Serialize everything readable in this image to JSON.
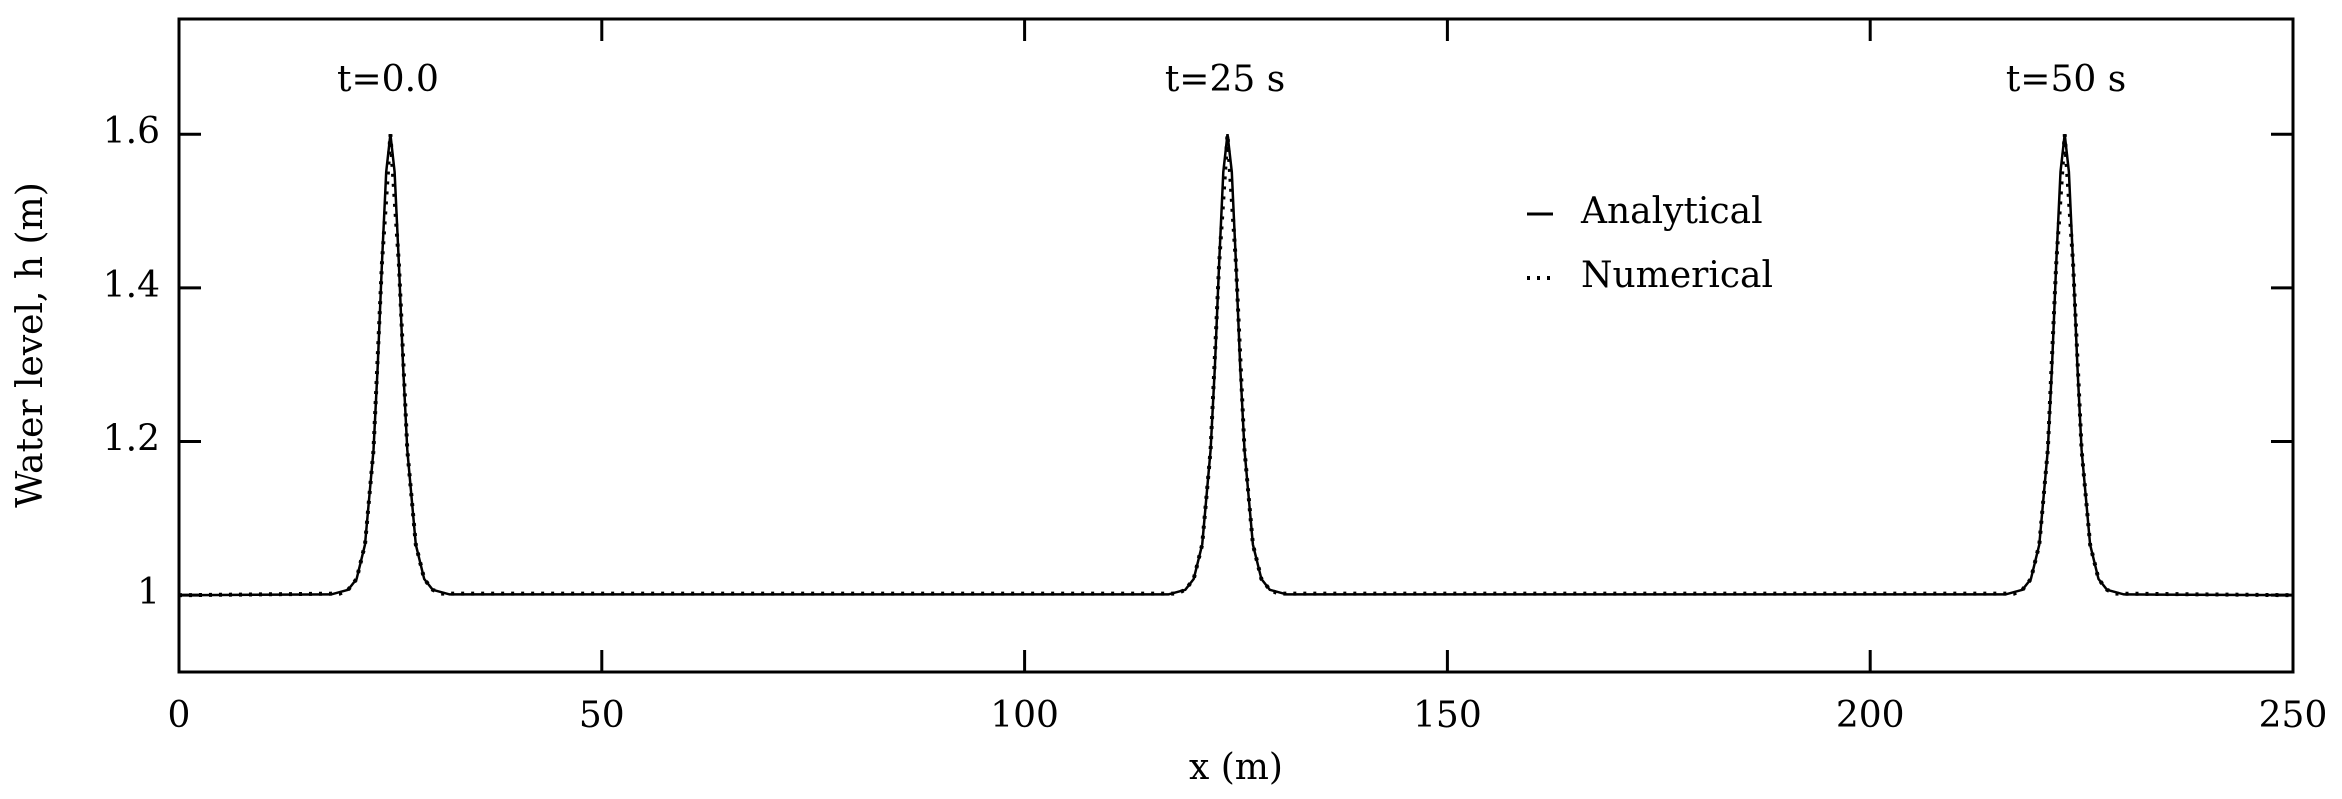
{
  "chart_data": {
    "type": "line",
    "xlabel": "x (m)",
    "ylabel": "Water level, h (m)",
    "annotations": [
      "t=0.0",
      "t=25 s",
      "t=50 s"
    ],
    "xlim": [
      0,
      250
    ],
    "xticks": [
      0,
      50,
      100,
      150,
      200,
      250
    ],
    "ylim": [
      0.9,
      1.75
    ],
    "yticks": [
      1,
      1.2,
      1.4,
      1.6
    ],
    "legend": "upper right",
    "series": [
      {
        "name": "Analytical",
        "color": "#000000",
        "style": "solid",
        "x": [
          0,
          18,
          20,
          21,
          22,
          23,
          23.5,
          24,
          24.5,
          25,
          25.5,
          26,
          26.5,
          27,
          28,
          29,
          30,
          32,
          117,
          119,
          120,
          121,
          122,
          122.5,
          123,
          123.5,
          124,
          124.5,
          125,
          125.5,
          126,
          127,
          128,
          129,
          131,
          216,
          218,
          219,
          220,
          221,
          221.5,
          222,
          222.5,
          223,
          223.5,
          224,
          224.5,
          225,
          226,
          227,
          228,
          230,
          250
        ],
        "values": [
          1,
          1.001,
          1.007,
          1.021,
          1.066,
          1.189,
          1.298,
          1.431,
          1.551,
          1.6,
          1.551,
          1.431,
          1.298,
          1.189,
          1.066,
          1.021,
          1.007,
          1.001,
          1.001,
          1.007,
          1.021,
          1.066,
          1.189,
          1.298,
          1.431,
          1.551,
          1.6,
          1.551,
          1.431,
          1.298,
          1.189,
          1.066,
          1.021,
          1.007,
          1.001,
          1.001,
          1.007,
          1.021,
          1.066,
          1.189,
          1.298,
          1.431,
          1.551,
          1.6,
          1.551,
          1.431,
          1.298,
          1.189,
          1.066,
          1.021,
          1.007,
          1.001,
          1
        ]
      },
      {
        "name": "Numerical",
        "color": "#000000",
        "style": "dotted",
        "x": [
          0,
          19,
          20,
          21,
          22,
          23,
          24,
          25,
          26,
          27,
          28,
          29,
          30,
          31,
          118,
          119,
          120,
          121,
          122,
          123,
          124,
          125,
          126,
          127,
          128,
          129,
          130,
          217,
          218,
          219,
          220,
          221,
          222,
          223,
          224,
          225,
          226,
          227,
          228,
          229,
          250
        ],
        "values": [
          1,
          1.002,
          1.007,
          1.021,
          1.066,
          1.189,
          1.431,
          1.6,
          1.431,
          1.189,
          1.066,
          1.021,
          1.007,
          1.002,
          1.002,
          1.007,
          1.021,
          1.066,
          1.189,
          1.431,
          1.6,
          1.431,
          1.189,
          1.066,
          1.021,
          1.007,
          1.002,
          1.002,
          1.007,
          1.021,
          1.066,
          1.189,
          1.431,
          1.6,
          1.431,
          1.189,
          1.066,
          1.021,
          1.007,
          1.002,
          1
        ]
      }
    ]
  }
}
